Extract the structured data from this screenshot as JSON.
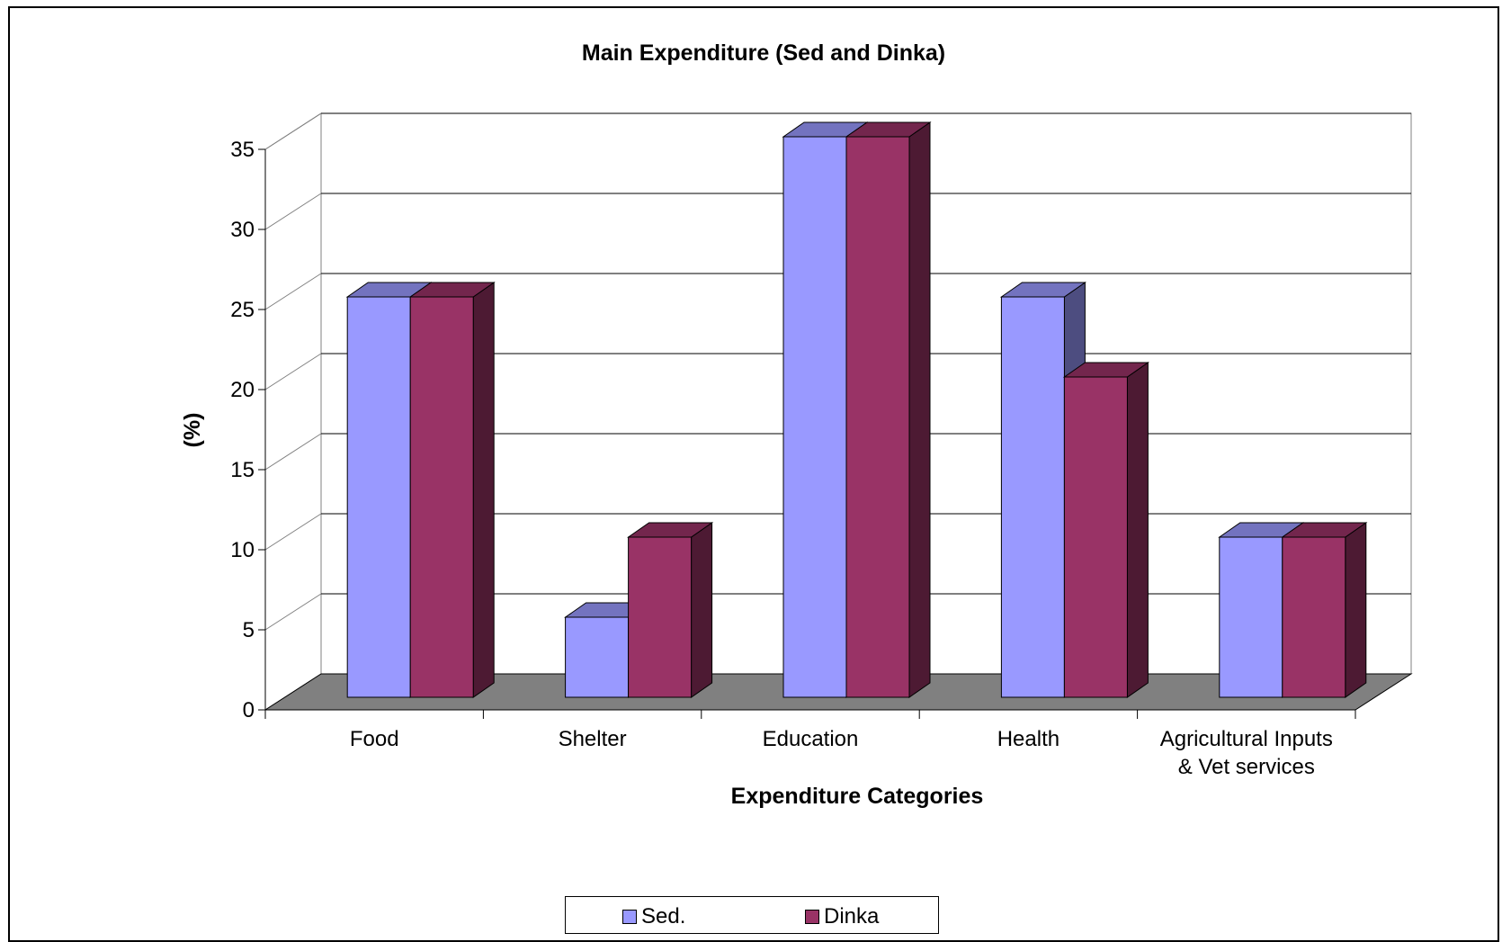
{
  "chart_data": {
    "type": "bar",
    "title": "Main Expenditure (Sed and Dinka)",
    "xlabel": "Expenditure Categories",
    "ylabel": "(%)",
    "categories": [
      "Food",
      "Shelter",
      "Education",
      "Health",
      "Agricultural Inputs & Vet services"
    ],
    "category_lines": [
      [
        "Food"
      ],
      [
        "Shelter"
      ],
      [
        "Education"
      ],
      [
        "Health"
      ],
      [
        "Agricultural Inputs",
        "& Vet services"
      ]
    ],
    "series": [
      {
        "name": "Sed.",
        "values": [
          25,
          5,
          35,
          25,
          10
        ],
        "color": "#9999FF"
      },
      {
        "name": "Dinka",
        "values": [
          25,
          10,
          35,
          20,
          10
        ],
        "color": "#993366"
      }
    ],
    "ylim": [
      0,
      35
    ],
    "yticks": [
      0,
      5,
      10,
      15,
      20,
      25,
      30,
      35
    ],
    "grid": true,
    "legend_position": "bottom"
  }
}
